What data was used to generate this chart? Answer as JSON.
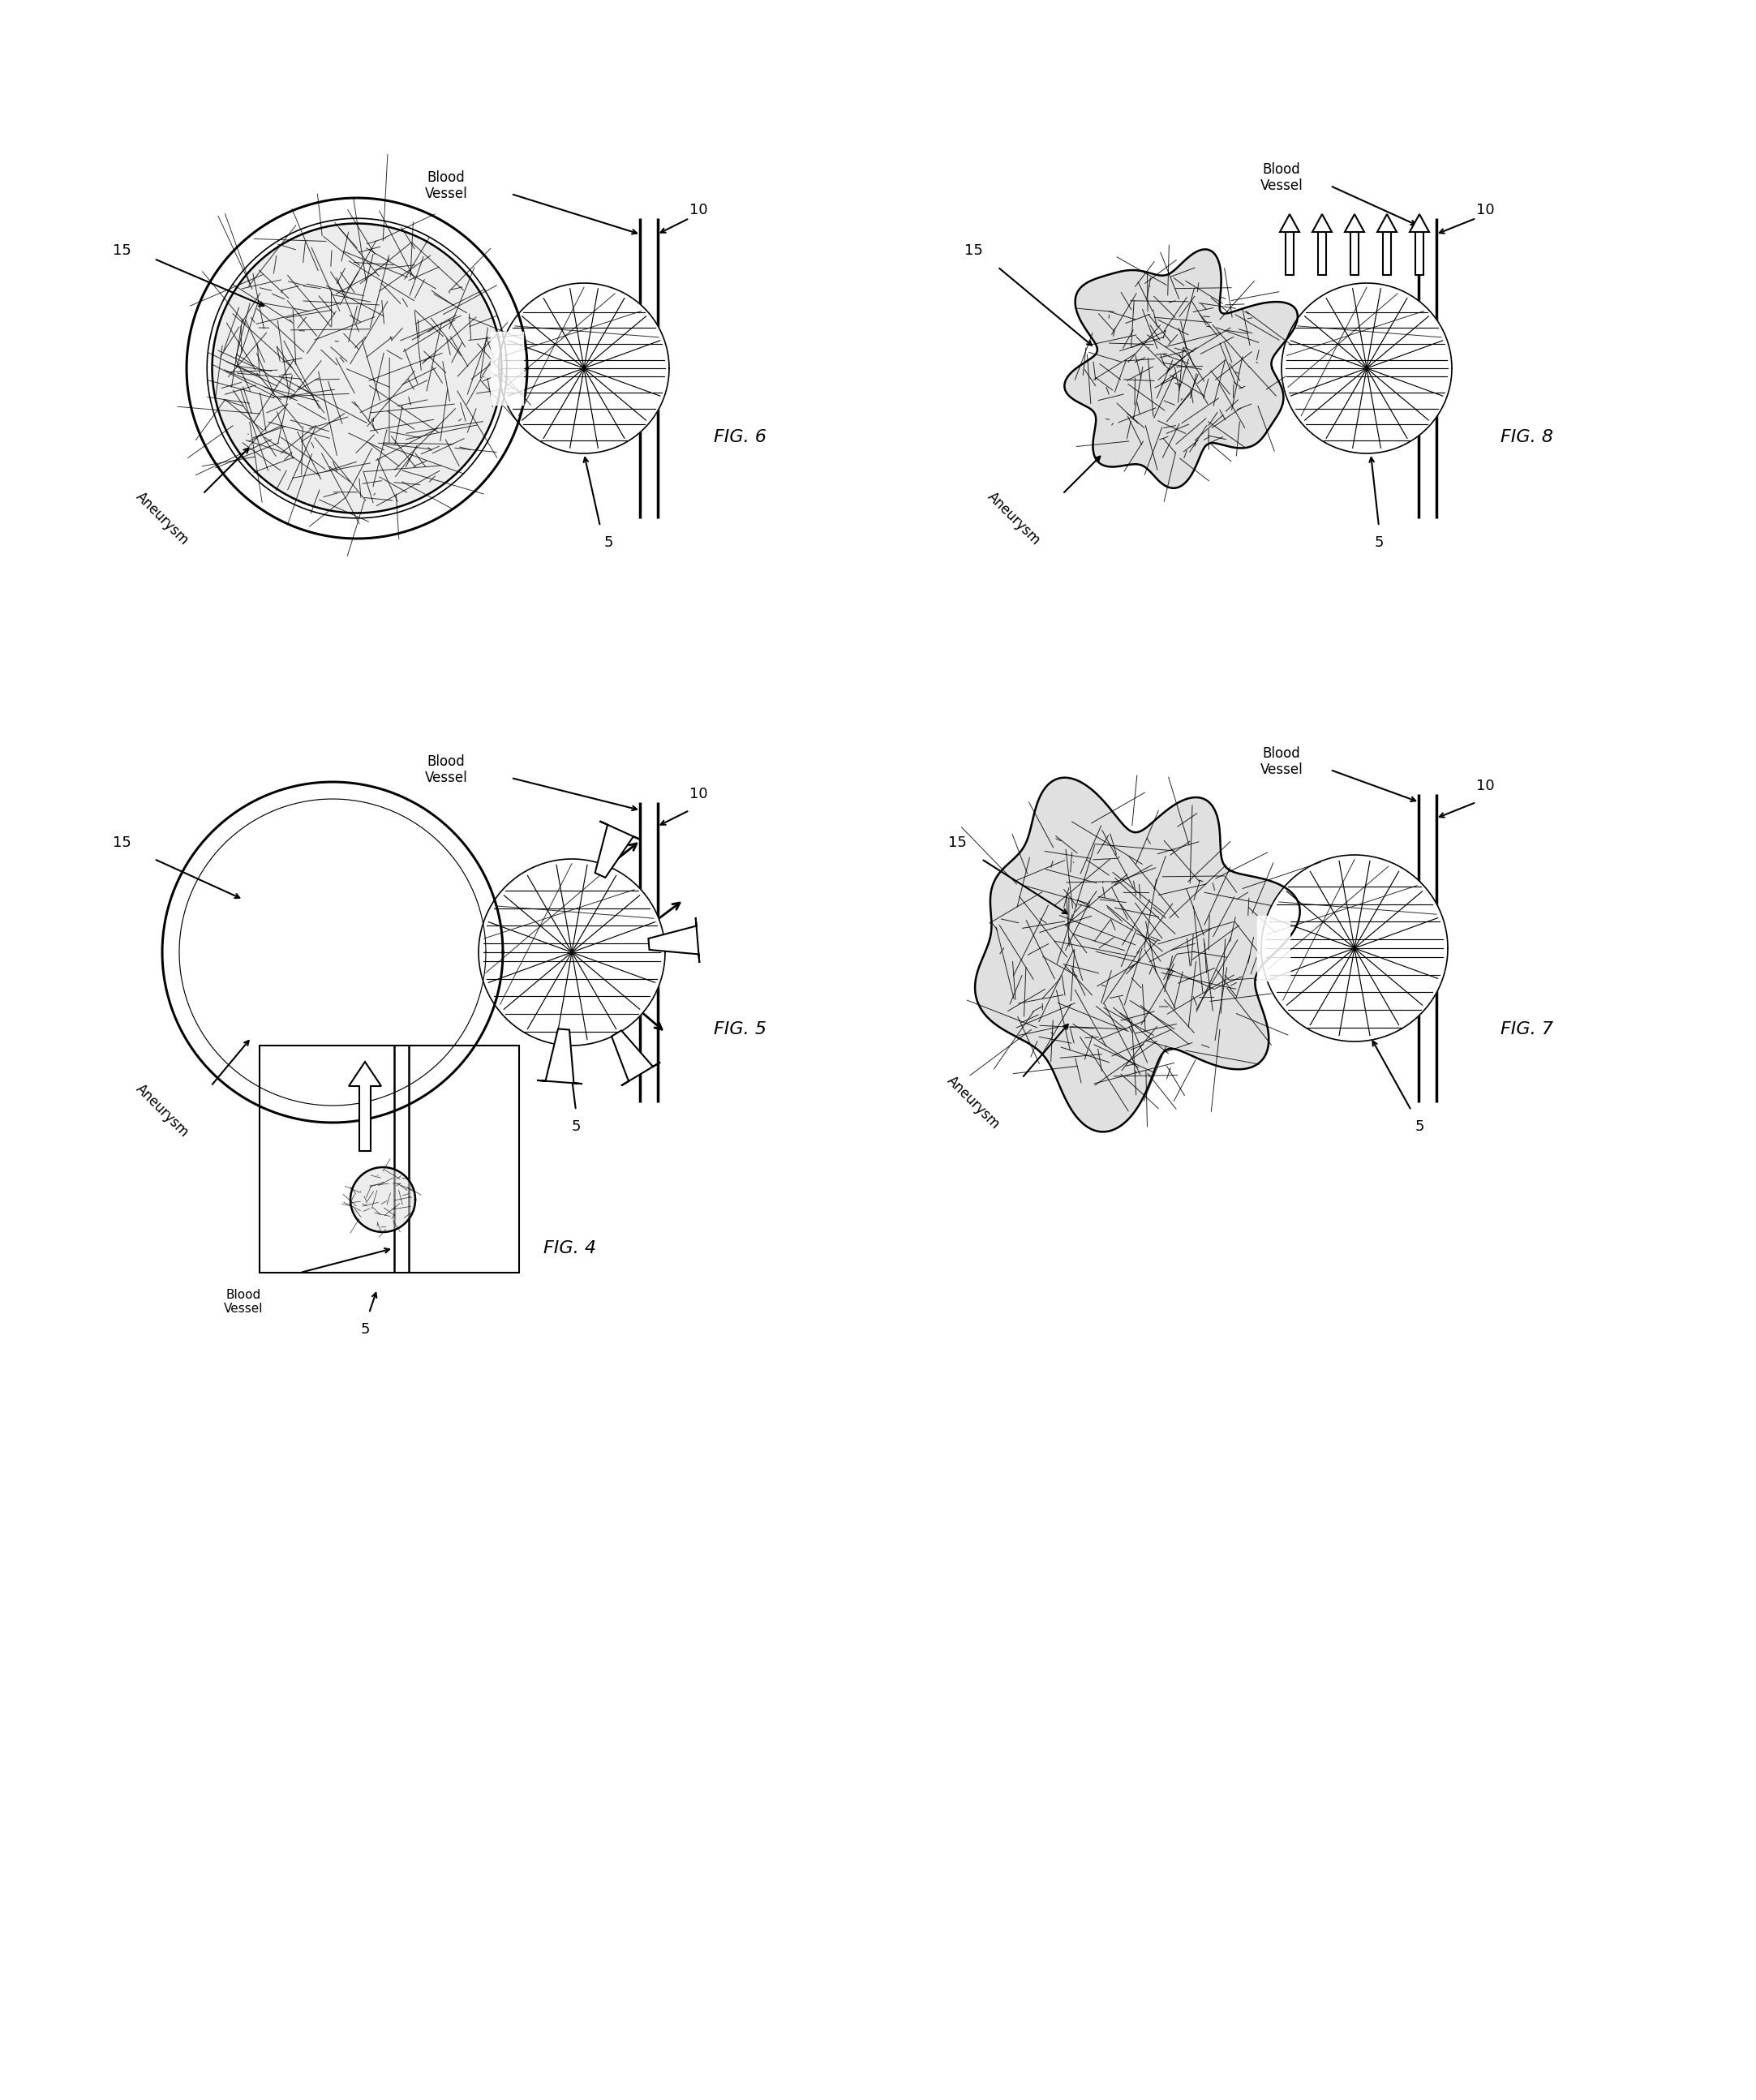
{
  "bg_color": "#ffffff",
  "line_color": "#000000",
  "fig_labels": [
    "FIG. 4",
    "FIG. 5",
    "FIG. 6",
    "FIG. 7",
    "FIG. 8"
  ],
  "ref_nums": {
    "5": "5",
    "10": "10",
    "15": "15"
  },
  "labels": {
    "blood_vessel": "Blood\nVessel",
    "aneurysm": "Aneurysm"
  }
}
